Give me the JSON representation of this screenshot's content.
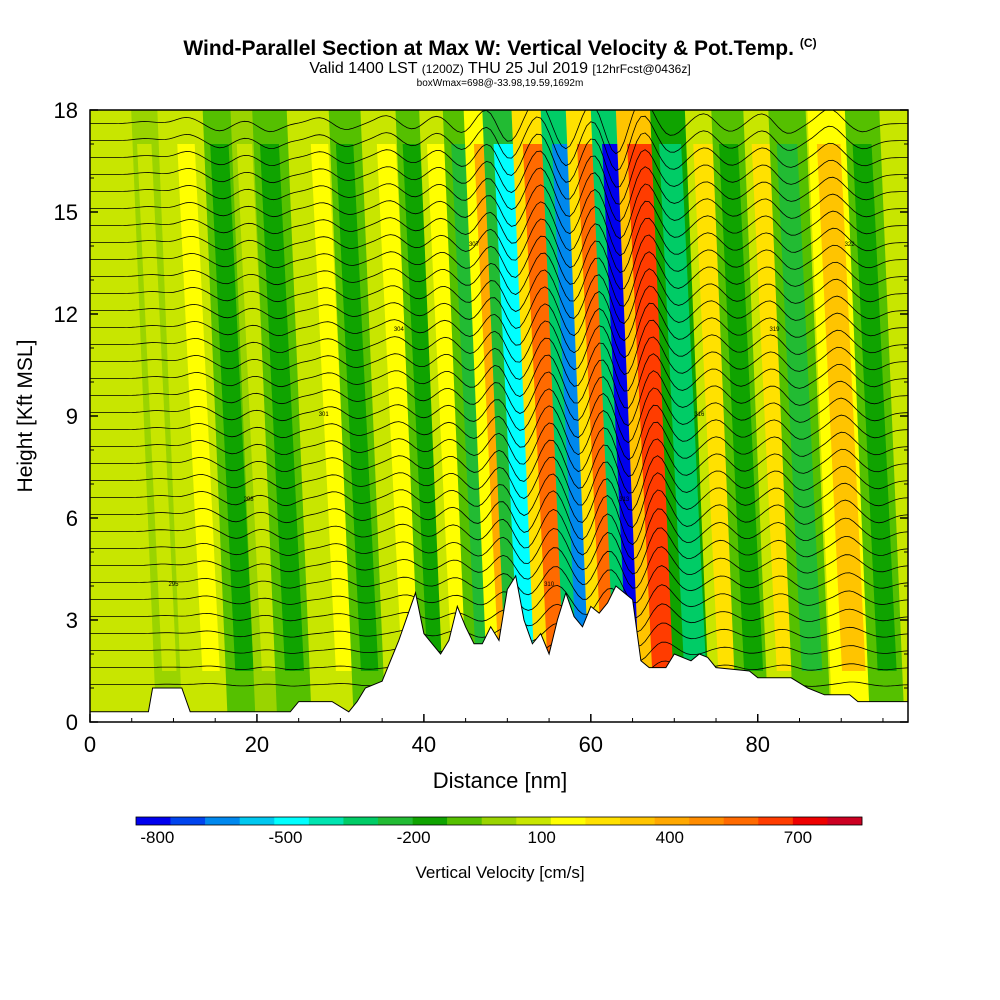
{
  "title": "Wind-Parallel Section at Max W: Vertical Velocity & Pot.Temp.",
  "copyright": "(C)",
  "subtitle_a": "Valid 1400 LST",
  "subtitle_b": "(1200Z)",
  "subtitle_c": "THU 25 Jul 2019",
  "subtitle_d": "[12hrFcst@0436z]",
  "subsubtitle": "boxWmax=698@-33.98,19.59,1692m",
  "chart_data": {
    "type": "heatmap",
    "title": "Wind-Parallel Section at Max W: Vertical Velocity & Pot.Temp.",
    "xlabel": "Distance [nm]",
    "ylabel": "Height [Kft MSL]",
    "xlim": [
      0,
      98
    ],
    "ylim": [
      0,
      18
    ],
    "xticks": [
      0,
      20,
      40,
      60,
      80
    ],
    "yticks": [
      0,
      3,
      6,
      9,
      12,
      15,
      18
    ],
    "bands": [
      {
        "center": 8,
        "value": 50
      },
      {
        "center": 13,
        "value": 150
      },
      {
        "center": 17,
        "value": -180
      },
      {
        "center": 20,
        "value": 80
      },
      {
        "center": 23,
        "value": -200
      },
      {
        "center": 29,
        "value": 150
      },
      {
        "center": 32,
        "value": -150
      },
      {
        "center": 37,
        "value": 200
      },
      {
        "center": 40,
        "value": -150
      },
      {
        "center": 43,
        "value": 200
      },
      {
        "center": 46,
        "value": -250
      },
      {
        "center": 49,
        "value": 400
      },
      {
        "center": 51.5,
        "value": -500
      },
      {
        "center": 55,
        "value": 600
      },
      {
        "center": 58.5,
        "value": -650
      },
      {
        "center": 61.5,
        "value": 550
      },
      {
        "center": 64.5,
        "value": -800
      },
      {
        "center": 67.5,
        "value": 650
      },
      {
        "center": 71,
        "value": -300
      },
      {
        "center": 75,
        "value": 250
      },
      {
        "center": 78,
        "value": -200
      },
      {
        "center": 82,
        "value": 250
      },
      {
        "center": 85,
        "value": -250
      },
      {
        "center": 90,
        "value": 350
      },
      {
        "center": 94,
        "value": -200
      }
    ],
    "terrain": [
      [
        0,
        0.3
      ],
      [
        7,
        0.3
      ],
      [
        7.5,
        1
      ],
      [
        11,
        1
      ],
      [
        12,
        0.3
      ],
      [
        24,
        0.3
      ],
      [
        25,
        0.6
      ],
      [
        29,
        0.6
      ],
      [
        31,
        0.3
      ],
      [
        32,
        0.6
      ],
      [
        33,
        1
      ],
      [
        35,
        1.2
      ],
      [
        37,
        2.4
      ],
      [
        39,
        3.8
      ],
      [
        40,
        2.6
      ],
      [
        41,
        2.3
      ],
      [
        42,
        2
      ],
      [
        43,
        2.4
      ],
      [
        44,
        3.4
      ],
      [
        45,
        2.8
      ],
      [
        46,
        2.3
      ],
      [
        47,
        2.3
      ],
      [
        48,
        2.8
      ],
      [
        49,
        2.4
      ],
      [
        50,
        3.9
      ],
      [
        51,
        4.3
      ],
      [
        52,
        3
      ],
      [
        53,
        2.3
      ],
      [
        54,
        2.6
      ],
      [
        55,
        2
      ],
      [
        56,
        3
      ],
      [
        57,
        3.8
      ],
      [
        58,
        3.1
      ],
      [
        59,
        2.8
      ],
      [
        60,
        3.4
      ],
      [
        61,
        3.2
      ],
      [
        62,
        3.5
      ],
      [
        63,
        4
      ],
      [
        64,
        3.8
      ],
      [
        65,
        3.6
      ],
      [
        66,
        1.8
      ],
      [
        67,
        1.6
      ],
      [
        69,
        1.6
      ],
      [
        70,
        2
      ],
      [
        72,
        1.8
      ],
      [
        73,
        2
      ],
      [
        74,
        1.9
      ],
      [
        75,
        1.6
      ],
      [
        79,
        1.5
      ],
      [
        80,
        1.3
      ],
      [
        84,
        1.3
      ],
      [
        86,
        1
      ],
      [
        88,
        0.8
      ],
      [
        91,
        0.8
      ],
      [
        92,
        0.6
      ],
      [
        98,
        0.6
      ]
    ],
    "contour_levels": [
      "295",
      "298",
      "301",
      "304",
      "307",
      "310",
      "313",
      "316",
      "319",
      "322"
    ]
  },
  "colorbar": {
    "label": "Vertical Velocity [cm/s]",
    "colors": [
      "#0000ee",
      "#0044ee",
      "#0088ee",
      "#00c8f0",
      "#00ffff",
      "#00e4b0",
      "#00cc66",
      "#22bb33",
      "#0fa300",
      "#55c000",
      "#9ad400",
      "#c8e600",
      "#ffff00",
      "#ffe100",
      "#ffc400",
      "#ffa800",
      "#ff8c00",
      "#ff6a00",
      "#ff3c00",
      "#ee0000",
      "#cc0022"
    ],
    "tick_labels": [
      "-800",
      "-500",
      "-200",
      "100",
      "400",
      "700"
    ],
    "tick_values": [
      -800,
      -500,
      -200,
      100,
      400,
      700
    ],
    "range": [
      -850,
      850
    ]
  }
}
